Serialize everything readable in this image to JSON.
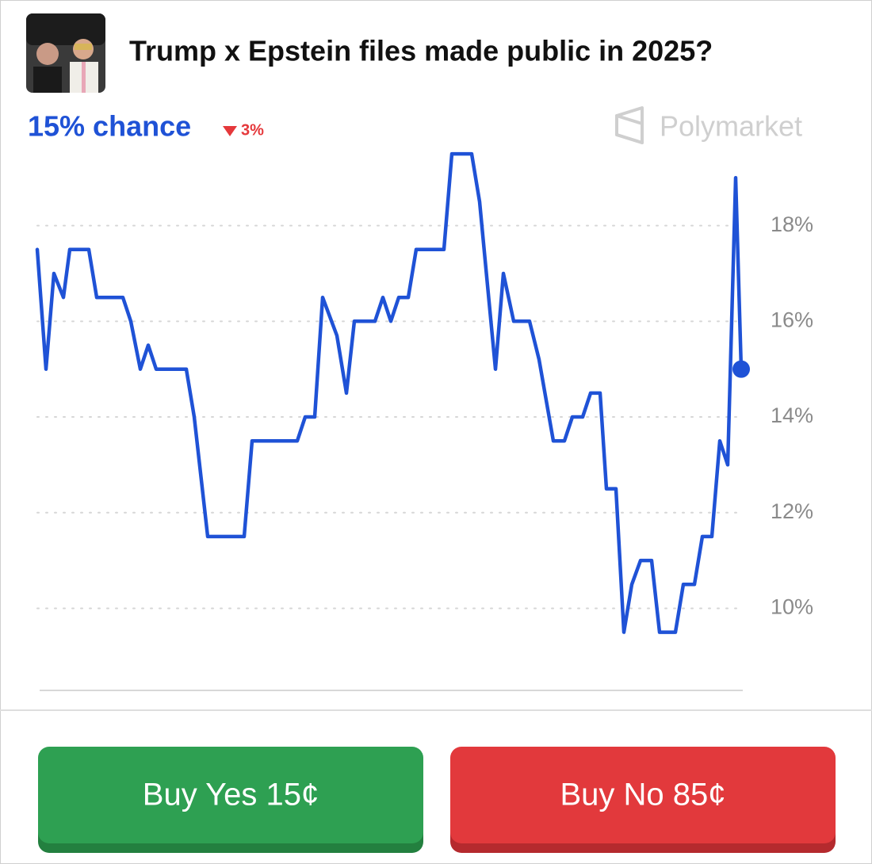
{
  "header": {
    "title": "Trump x Epstein files made public in 2025?"
  },
  "summary": {
    "chance": "15% chance",
    "change": "3%",
    "brand": "Polymarket"
  },
  "buttons": {
    "yes": "Buy Yes 15¢",
    "no": "Buy No 85¢"
  },
  "chart_data": {
    "type": "line",
    "color": "#1f52d6",
    "x": [
      0,
      11,
      21,
      33,
      41,
      65,
      75,
      108,
      118,
      130,
      140,
      150,
      188,
      198,
      215,
      261,
      271,
      328,
      338,
      350,
      360,
      378,
      390,
      400,
      426,
      436,
      446,
      456,
      468,
      478,
      513,
      523,
      548,
      558,
      578,
      588,
      601,
      621,
      633,
      651,
      665,
      675,
      688,
      698,
      710,
      718,
      730,
      740,
      750,
      761,
      775,
      785,
      805,
      815,
      829,
      839,
      851,
      861,
      871,
      881,
      888
    ],
    "values": [
      17.5,
      15,
      17,
      16.5,
      17.5,
      17.5,
      16.5,
      16.5,
      16,
      15,
      15.5,
      15,
      15,
      14,
      11.5,
      11.5,
      13.5,
      13.5,
      14,
      14,
      16.5,
      15.7,
      14.5,
      16,
      16,
      16.5,
      16,
      16.5,
      16.5,
      17.5,
      17.5,
      19.5,
      19.5,
      18.5,
      15,
      17,
      16,
      16,
      15.2,
      13.5,
      13.5,
      14,
      14,
      14.5,
      14.5,
      12.5,
      12.5,
      9.5,
      10.5,
      11,
      11,
      9.5,
      9.5,
      10.5,
      10.5,
      11.5,
      11.5,
      13.5,
      13,
      19,
      15
    ],
    "xlim": [
      0,
      888
    ],
    "ylim": [
      8.4,
      19.8
    ],
    "yticks": [
      {
        "value": 10,
        "label": "10%"
      },
      {
        "value": 12,
        "label": "12%"
      },
      {
        "value": 14,
        "label": "14%"
      },
      {
        "value": 16,
        "label": "16%"
      },
      {
        "value": 18,
        "label": "18%"
      }
    ],
    "grid": true
  }
}
